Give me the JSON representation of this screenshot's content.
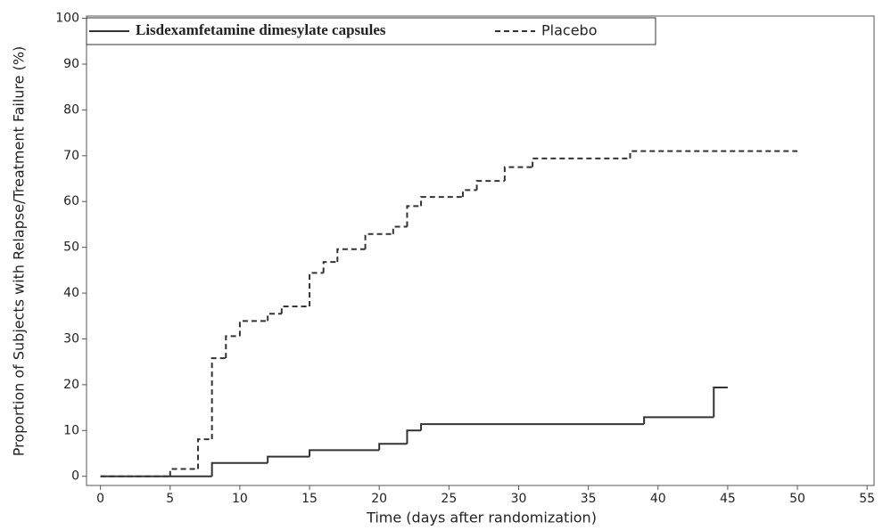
{
  "chart_data": {
    "type": "line",
    "drawstyle": "steps-post",
    "xlabel": "Time (days after randomization)",
    "ylabel": "Proportion of Subjects with Relapse/Treatment Failure (%)",
    "xlim": [
      -1,
      55.5
    ],
    "ylim": [
      -2,
      100.5
    ],
    "xticks": [
      0,
      5,
      10,
      15,
      20,
      25,
      30,
      35,
      40,
      45,
      50,
      55
    ],
    "yticks": [
      0,
      10,
      20,
      30,
      40,
      50,
      60,
      70,
      80,
      90,
      100
    ],
    "grid": false,
    "legend": "upper left",
    "series": [
      {
        "name": "Lisdexamfetamine dimesylate capsules",
        "color": "#333333",
        "linestyle": "solid",
        "x": [
          0,
          8,
          12,
          15,
          20,
          22,
          23,
          39,
          44,
          45
        ],
        "values": [
          0,
          2.9,
          4.3,
          5.7,
          7.1,
          10,
          11.4,
          12.9,
          19.4,
          19.4
        ]
      },
      {
        "name": "Placebo",
        "color": "#333333",
        "linestyle": "dashed",
        "x": [
          0,
          5,
          7,
          8,
          9,
          10,
          12,
          13,
          15,
          16,
          17,
          19,
          21,
          22,
          23,
          26,
          27,
          29,
          31,
          38,
          50
        ],
        "values": [
          0,
          1.6,
          8.1,
          25.8,
          30.6,
          33.9,
          35.5,
          37.1,
          44.4,
          46.8,
          49.6,
          52.9,
          54.5,
          59,
          61,
          62.5,
          64.5,
          67.5,
          69.4,
          71,
          71
        ]
      }
    ]
  }
}
